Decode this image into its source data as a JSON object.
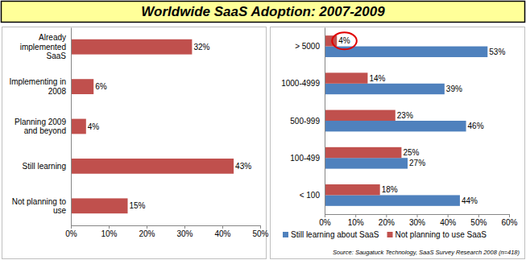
{
  "title": "Worldwide SaaS Adoption: 2007-2009",
  "source": "Source: Saugatuck Technology, SaaS Survey Research 2008 (n=418)",
  "chart_data": [
    {
      "type": "bar",
      "orientation": "horizontal",
      "data_labels": true,
      "grid": false,
      "categories": [
        "Already implemented SaaS",
        "Implementing in 2008",
        "Planning 2009 and beyond",
        "Still learning",
        "Not planning to use"
      ],
      "values": [
        32,
        6,
        4,
        43,
        15
      ],
      "value_labels": [
        "32%",
        "6%",
        "4%",
        "43%",
        "15%"
      ],
      "color": "#c0504d",
      "xlim": [
        0,
        50
      ],
      "xticks": [
        {
          "value": 0,
          "label": "0%"
        },
        {
          "value": 10,
          "label": "10%"
        },
        {
          "value": 20,
          "label": "20%"
        },
        {
          "value": 30,
          "label": "30%"
        },
        {
          "value": 40,
          "label": "40%"
        },
        {
          "value": 50,
          "label": "50%"
        }
      ]
    },
    {
      "type": "bar",
      "orientation": "horizontal",
      "data_labels": true,
      "grid": false,
      "legend": "bottom",
      "categories": [
        "> 5000",
        "1000-4999",
        "500-999",
        "100-499",
        "< 100"
      ],
      "series": [
        {
          "name": "Still learning about SaaS",
          "color": "#4f81bd",
          "values": [
            53,
            39,
            46,
            27,
            44
          ],
          "value_labels": [
            "53%",
            "39%",
            "46%",
            "27%",
            "44%"
          ]
        },
        {
          "name": "Not planning to use SaaS",
          "color": "#c0504d",
          "values": [
            4,
            14,
            23,
            25,
            18
          ],
          "value_labels": [
            "4%",
            "14%",
            "23%",
            "25%",
            "18%"
          ]
        }
      ],
      "xlim": [
        0,
        60
      ],
      "xticks": [
        {
          "value": 0,
          "label": "0%"
        },
        {
          "value": 10,
          "label": "10%"
        },
        {
          "value": 20,
          "label": "20%"
        },
        {
          "value": 30,
          "label": "30%"
        },
        {
          "value": 40,
          "label": "40%"
        },
        {
          "value": 50,
          "label": "50%"
        },
        {
          "value": 60,
          "label": "60%"
        }
      ]
    }
  ]
}
